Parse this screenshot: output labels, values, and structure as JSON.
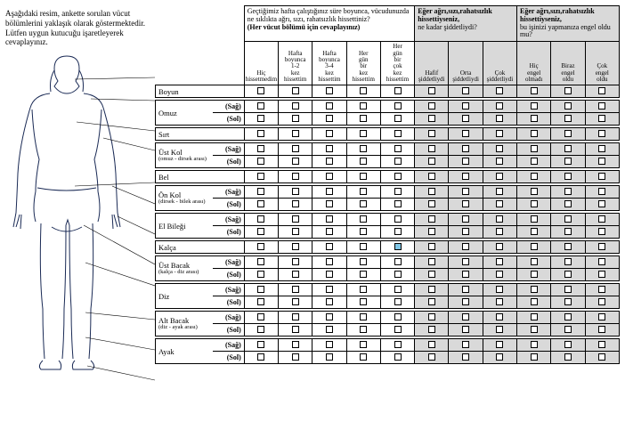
{
  "intro": {
    "line1": "Aşağıdaki resim, ankette sorulan vücut bölümlerini yaklaşık olarak göstermektedir.",
    "line2": "Lütfen uygun kutucuğu işaretleyerek cevaplayınız."
  },
  "header_groups": [
    {
      "question": "Geçtiğimiz hafta çalıştığınız süre boyunca, vücudunuzda ne sıklıkta ağrı, sızı, rahatsızlık hissettiniz?",
      "hint": "(Her vücut bölümü için cevaplayınız)"
    },
    {
      "question": "Eğer ağrı,sızı,rahatsızlık hissettiyseniz,",
      "hint": "ne kadar şiddetliydi?"
    },
    {
      "question": "Eğer ağrı,sızı,rahatsızlık hissettiyseniz,",
      "hint": "bu işinizi yapmanıza engel oldu mu?"
    }
  ],
  "sub_headers": {
    "g1": [
      "Hiç hissetmedim",
      "Hafta boyunca 1-2 kez hissettim",
      "Hafta boyunca 3-4 kez hissettim",
      "Her gün bir kez hissettim",
      "Her gün bir çok kez hissettim"
    ],
    "g2": [
      "Hafif şiddetliydi",
      "Orta şiddetliydi",
      "Çok şiddetliydi"
    ],
    "g3": [
      "Hiç engel olmadı",
      "Biraz engel oldu",
      "Çok engel oldu"
    ]
  },
  "rows": [
    {
      "label": "Boyun",
      "sublabel": "",
      "sides": [
        ""
      ]
    },
    {
      "label": "Omuz",
      "sublabel": "",
      "sides": [
        "(Sağ)",
        "(Sol)"
      ]
    },
    {
      "label": "Sırt",
      "sublabel": "",
      "sides": [
        ""
      ]
    },
    {
      "label": "Üst Kol",
      "sublabel": "(omuz - dirsek arası)",
      "sides": [
        "(Sağ)",
        "(Sol)"
      ]
    },
    {
      "label": "Bel",
      "sublabel": "",
      "sides": [
        ""
      ]
    },
    {
      "label": "Ön Kol",
      "sublabel": "(dirsek - bilek arası)",
      "sides": [
        "(Sağ)",
        "(Sol)"
      ]
    },
    {
      "label": "El Bileği",
      "sublabel": "",
      "sides": [
        "(Sağ)",
        "(Sol)"
      ]
    },
    {
      "label": "Kalça",
      "sublabel": "",
      "sides": [
        ""
      ],
      "highlight": [
        4
      ]
    },
    {
      "label": "Üst Bacak",
      "sublabel": "(kalça - diz arası)",
      "sides": [
        "(Sağ)",
        "(Sol)"
      ]
    },
    {
      "label": "Diz",
      "sublabel": "",
      "sides": [
        "(Sağ)",
        "(Sol)"
      ]
    },
    {
      "label": "Alt Bacak",
      "sublabel": "(diz - ayak arası)",
      "sides": [
        "(Sağ)",
        "(Sol)"
      ]
    },
    {
      "label": "Ayak",
      "sublabel": "",
      "sides": [
        "(Sağ)",
        "(Sol)"
      ]
    }
  ],
  "colwidths": {
    "label": 56,
    "side": 30,
    "g1": 33,
    "g2": 33,
    "g3": 33
  },
  "colors": {
    "shade": "#d9d9d9",
    "highlight": "#7fc6e6"
  }
}
